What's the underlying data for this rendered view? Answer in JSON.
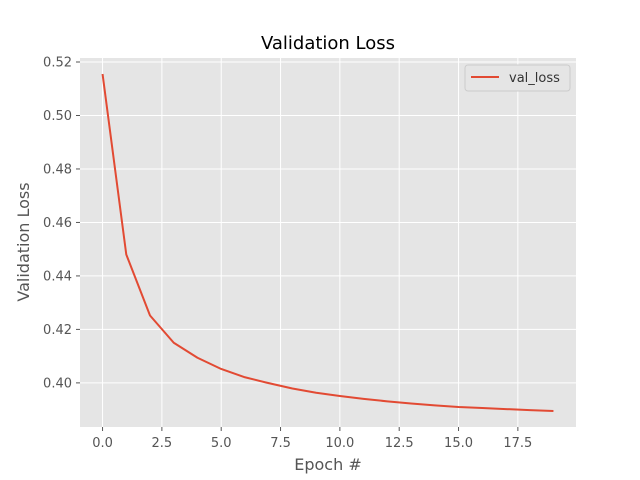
{
  "chart_data": {
    "type": "line",
    "title": "Validation Loss",
    "xlabel": "Epoch #",
    "ylabel": "Validation Loss",
    "xlim": [
      -0.95,
      19.95
    ],
    "ylim": [
      0.3835,
      0.5215
    ],
    "xticks": [
      "0.0",
      "2.5",
      "5.0",
      "7.5",
      "10.0",
      "12.5",
      "15.0",
      "17.5"
    ],
    "yticks": [
      "0.40",
      "0.42",
      "0.44",
      "0.46",
      "0.48",
      "0.50",
      "0.52"
    ],
    "grid": true,
    "legend_position": "top-right",
    "x": [
      0,
      1,
      2,
      3,
      4,
      5,
      6,
      7,
      8,
      9,
      10,
      11,
      12,
      13,
      14,
      15,
      16,
      17,
      18,
      19
    ],
    "series": [
      {
        "name": "val_loss",
        "color": "#e24a33",
        "values": [
          0.5155,
          0.448,
          0.4252,
          0.415,
          0.4094,
          0.4052,
          0.4021,
          0.3999,
          0.3979,
          0.3963,
          0.3951,
          0.394,
          0.3931,
          0.3923,
          0.3916,
          0.391,
          0.3906,
          0.3902,
          0.3898,
          0.3895
        ]
      }
    ],
    "colors": {
      "plot_background": "#e5e5e5",
      "grid": "#ffffff",
      "tick_text": "#555555",
      "title_text": "#000000"
    }
  }
}
